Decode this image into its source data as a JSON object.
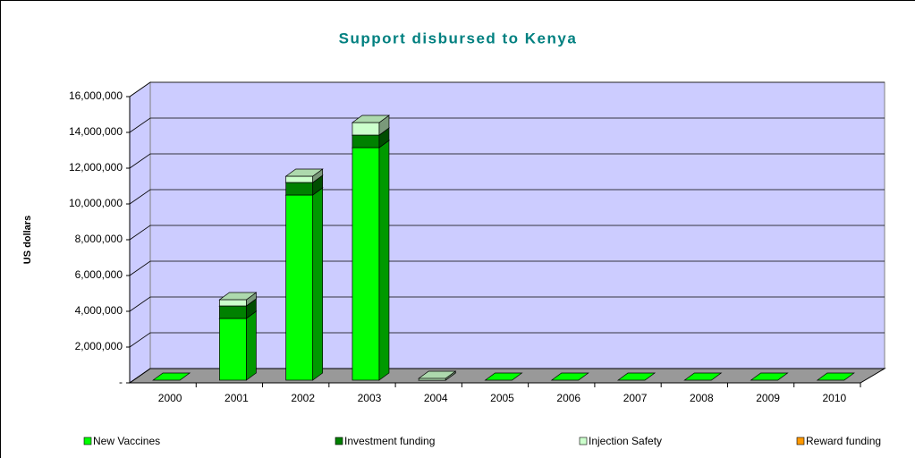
{
  "chart_data": {
    "type": "bar3d_stacked",
    "title": "Support disbursed to Kenya",
    "ylabel": "US dollars",
    "categories": [
      "2000",
      "2001",
      "2002",
      "2003",
      "2004",
      "2005",
      "2006",
      "2007",
      "2008",
      "2009",
      "2010"
    ],
    "series": [
      {
        "name": "New Vaccines",
        "color": "#00ff00",
        "values": [
          0,
          3450000,
          10350000,
          13000000,
          0,
          0,
          0,
          0,
          0,
          0,
          0
        ]
      },
      {
        "name": "Investment funding",
        "color": "#008000",
        "values": [
          0,
          700000,
          700000,
          700000,
          0,
          0,
          0,
          0,
          0,
          0,
          0
        ]
      },
      {
        "name": "Injection Safety",
        "color": "#ccffcc",
        "values": [
          0,
          350000,
          350000,
          700000,
          100000,
          0,
          0,
          0,
          0,
          0,
          0
        ]
      },
      {
        "name": "Reward funding",
        "color": "#ff9900",
        "values": [
          0,
          0,
          0,
          0,
          0,
          0,
          0,
          0,
          0,
          0,
          0
        ]
      }
    ],
    "ylim": [
      0,
      16000000
    ],
    "yticks": [
      {
        "value": 0,
        "label": "-"
      },
      {
        "value": 2000000,
        "label": "2,000,000"
      },
      {
        "value": 4000000,
        "label": "4,000,000"
      },
      {
        "value": 6000000,
        "label": "6,000,000"
      },
      {
        "value": 8000000,
        "label": "8,000,000"
      },
      {
        "value": 10000000,
        "label": "10,000,000"
      },
      {
        "value": 12000000,
        "label": "12,000,000"
      },
      {
        "value": 14000000,
        "label": "14,000,000"
      },
      {
        "value": 16000000,
        "label": "16,000,000"
      }
    ],
    "grid": true,
    "legend": "bottom"
  }
}
